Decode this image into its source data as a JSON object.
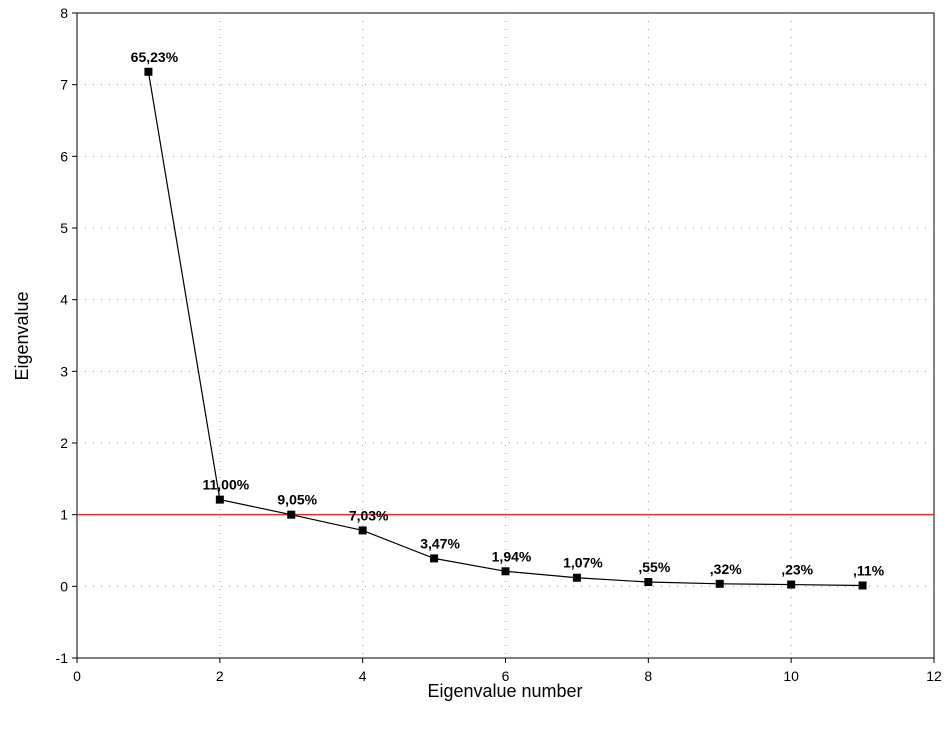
{
  "chart_data": {
    "type": "line",
    "title": "",
    "xlabel": "Eigenvalue number",
    "ylabel": "Eigenvalue",
    "xlim": [
      0,
      12
    ],
    "ylim": [
      -1,
      8
    ],
    "xticks": [
      "0",
      "2",
      "4",
      "6",
      "8",
      "10",
      "12"
    ],
    "yticks": [
      "-1",
      "0",
      "1",
      "2",
      "3",
      "4",
      "5",
      "6",
      "7",
      "8"
    ],
    "grid": "dotted",
    "reference_line": {
      "y": 1,
      "color": "#e03030"
    },
    "series_color": "#000000",
    "series": [
      {
        "x": [
          1,
          2,
          3,
          4,
          5,
          6,
          7,
          8,
          9,
          10,
          11
        ],
        "values": [
          7.18,
          1.21,
          1.0,
          0.78,
          0.39,
          0.21,
          0.12,
          0.06,
          0.035,
          0.025,
          0.012
        ],
        "labels": [
          "65,23%",
          "11,00%",
          "9,05%",
          "7,03%",
          "3,47%",
          "1,94%",
          "1,07%",
          ",55%",
          ",32%",
          ",23%",
          ",11%"
        ]
      }
    ]
  }
}
